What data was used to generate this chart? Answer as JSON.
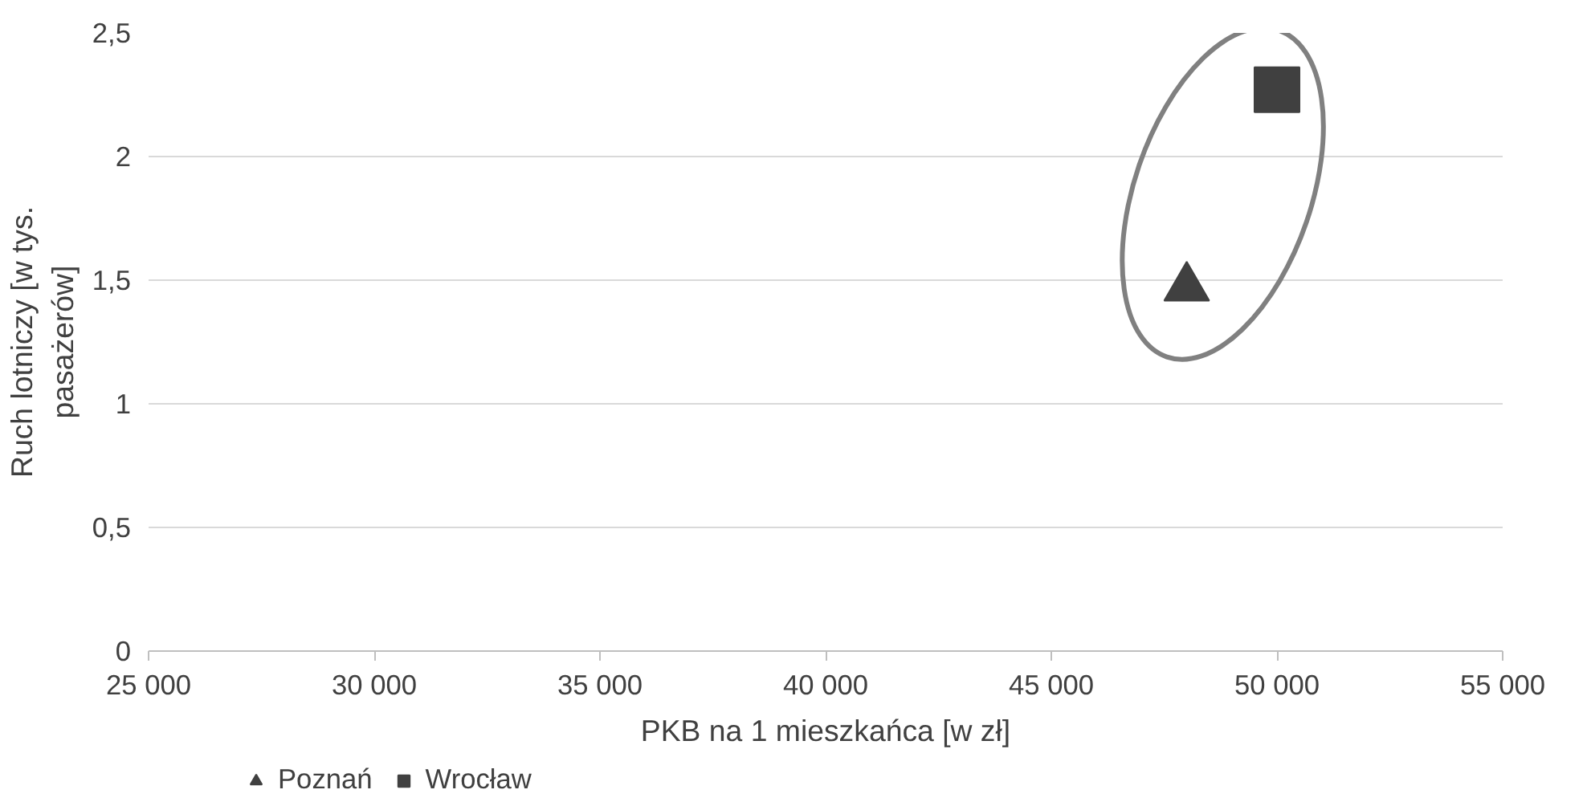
{
  "chart_data": {
    "type": "scatter",
    "xlabel": "PKB na 1 mieszkańca [w zł]",
    "ylabel": "Ruch lotniczy [w tys. pasażerów]",
    "xlim": [
      25000,
      55000
    ],
    "xticks": [
      {
        "value": 25000,
        "label": "25 000"
      },
      {
        "value": 30000,
        "label": "30 000"
      },
      {
        "value": 35000,
        "label": "35 000"
      },
      {
        "value": 40000,
        "label": "40 000"
      },
      {
        "value": 45000,
        "label": "45 000"
      },
      {
        "value": 50000,
        "label": "50 000"
      },
      {
        "value": 55000,
        "label": "55 000"
      }
    ],
    "ylim": [
      0,
      2.5
    ],
    "yticks": [
      0,
      {
        "value": 0.5,
        "label": "0,5"
      },
      1,
      {
        "value": 1.5,
        "label": "1,5"
      },
      2,
      {
        "value": 2.5,
        "label": "2,5"
      }
    ],
    "grid": "y",
    "legend": "bottom left",
    "series": [
      {
        "name": "Poznań",
        "color": "#404040",
        "marker": "triangle",
        "x": [
          48000
        ],
        "values": [
          1.47
        ]
      },
      {
        "name": "Wrocław",
        "color": "#404040",
        "marker": "square",
        "x": [
          50000
        ],
        "values": [
          2.27
        ]
      }
    ]
  }
}
